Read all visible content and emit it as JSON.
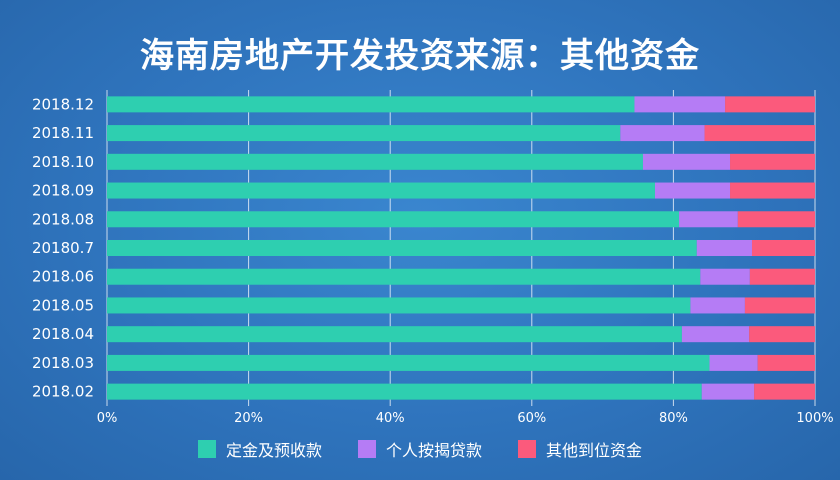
{
  "chart_data": {
    "type": "bar",
    "orientation": "horizontal",
    "stacked": "percent",
    "title": "海南房地产开发投资来源：其他资金",
    "categories": [
      "2018.12",
      "2018.11",
      "2018.10",
      "2018.09",
      "2018.08",
      "20180.7",
      "2018.06",
      "2018.05",
      "2018.04",
      "2018.03",
      "2018.02"
    ],
    "series": [
      {
        "name": "定金及预收款",
        "color": "#2ecfb0",
        "values": [
          74.5,
          72.5,
          75.7,
          77.4,
          80.8,
          83.3,
          83.8,
          82.4,
          81.2,
          85.1,
          84.0
        ]
      },
      {
        "name": "个人按揭贷款",
        "color": "#b57cf5",
        "values": [
          12.8,
          11.9,
          12.3,
          10.6,
          8.3,
          7.8,
          7.0,
          7.7,
          9.5,
          6.8,
          7.4
        ]
      },
      {
        "name": "其他到位资金",
        "color": "#fb5a7c",
        "values": [
          12.7,
          15.6,
          12.0,
          12.0,
          10.9,
          8.9,
          9.2,
          9.9,
          9.3,
          8.1,
          8.6
        ]
      }
    ],
    "x_ticks": [
      "0%",
      "20%",
      "40%",
      "60%",
      "80%",
      "100%"
    ],
    "xlim": [
      0,
      100
    ],
    "grid": "vertical",
    "legend_position": "bottom"
  }
}
